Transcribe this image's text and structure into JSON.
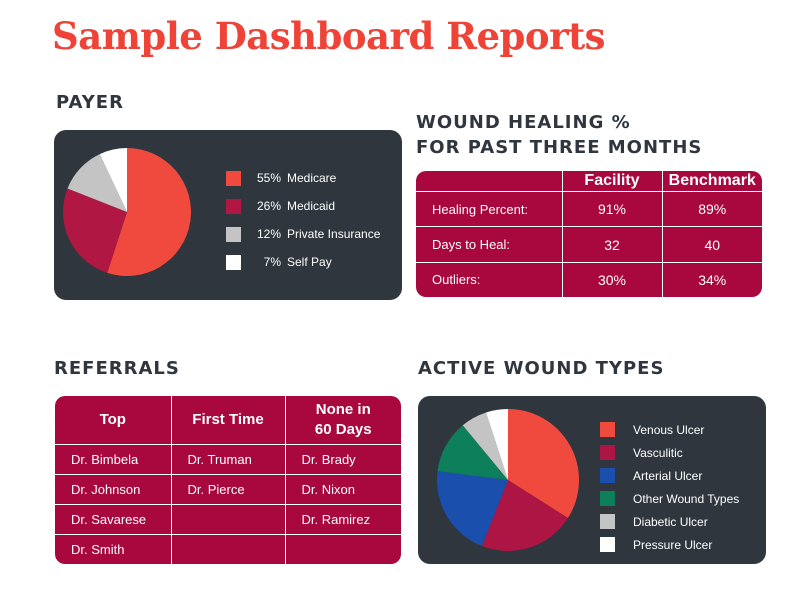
{
  "page_title": "Sample Dashboard Reports",
  "payer": {
    "heading": "PAYER",
    "colors": [
      "#f04a3e",
      "#b01742",
      "#c4c4c4",
      "#ffffff"
    ]
  },
  "healing": {
    "heading_line1": "WOUND HEALING %",
    "heading_line2": "FOR PAST THREE MONTHS",
    "columns": [
      "",
      "Facility",
      "Benchmark"
    ],
    "rows": [
      [
        "Healing Percent:",
        "91%",
        "89%"
      ],
      [
        "Days to Heal:",
        "32",
        "40"
      ],
      [
        "Outliers:",
        "30%",
        "34%"
      ]
    ]
  },
  "referrals": {
    "heading": "REFERRALS",
    "columns": [
      "Top",
      "First Time",
      "None in 60 Days"
    ],
    "rows": [
      [
        "Dr. Bimbela",
        "Dr. Truman",
        "Dr. Brady"
      ],
      [
        "Dr. Johnson",
        "Dr. Pierce",
        "Dr. Nixon"
      ],
      [
        "Dr. Savarese",
        "",
        "Dr. Ramirez"
      ],
      [
        "Dr. Smith",
        "",
        ""
      ]
    ]
  },
  "wound_types": {
    "heading": "ACTIVE WOUND TYPES",
    "colors": [
      "#f04a3e",
      "#ad1545",
      "#1a4fae",
      "#0e7f5b",
      "#c4c4c4",
      "#ffffff"
    ]
  },
  "chart_data": [
    {
      "type": "pie",
      "title": "PAYER",
      "categories": [
        "Medicare",
        "Medicaid",
        "Private Insurance",
        "Self Pay"
      ],
      "values": [
        55,
        26,
        12,
        7
      ],
      "value_labels": [
        "55%",
        "26%",
        "12%",
        "7%"
      ],
      "legend": "right"
    },
    {
      "type": "table",
      "title": "WOUND HEALING % FOR PAST THREE MONTHS",
      "columns": [
        "Facility",
        "Benchmark"
      ],
      "rows": [
        "Healing Percent:",
        "Days to Heal:",
        "Outliers:"
      ],
      "values": [
        [
          "91%",
          "89%"
        ],
        [
          "32",
          "40"
        ],
        [
          "30%",
          "34%"
        ]
      ]
    },
    {
      "type": "table",
      "title": "REFERRALS",
      "columns": [
        "Top",
        "First Time",
        "None in 60 Days"
      ],
      "values": [
        [
          "Dr. Bimbela",
          "Dr. Truman",
          "Dr. Brady"
        ],
        [
          "Dr. Johnson",
          "Dr. Pierce",
          "Dr. Nixon"
        ],
        [
          "Dr. Savarese",
          "",
          "Dr. Ramirez"
        ],
        [
          "Dr. Smith",
          "",
          ""
        ]
      ]
    },
    {
      "type": "pie",
      "title": "ACTIVE WOUND TYPES",
      "categories": [
        "Venous Ulcer",
        "Vasculitic",
        "Arterial Ulcer",
        "Other Wound Types",
        "Diabetic Ulcer",
        "Pressure Ulcer"
      ],
      "values": [
        34,
        22,
        21,
        12,
        6,
        5
      ],
      "legend": "right"
    }
  ]
}
